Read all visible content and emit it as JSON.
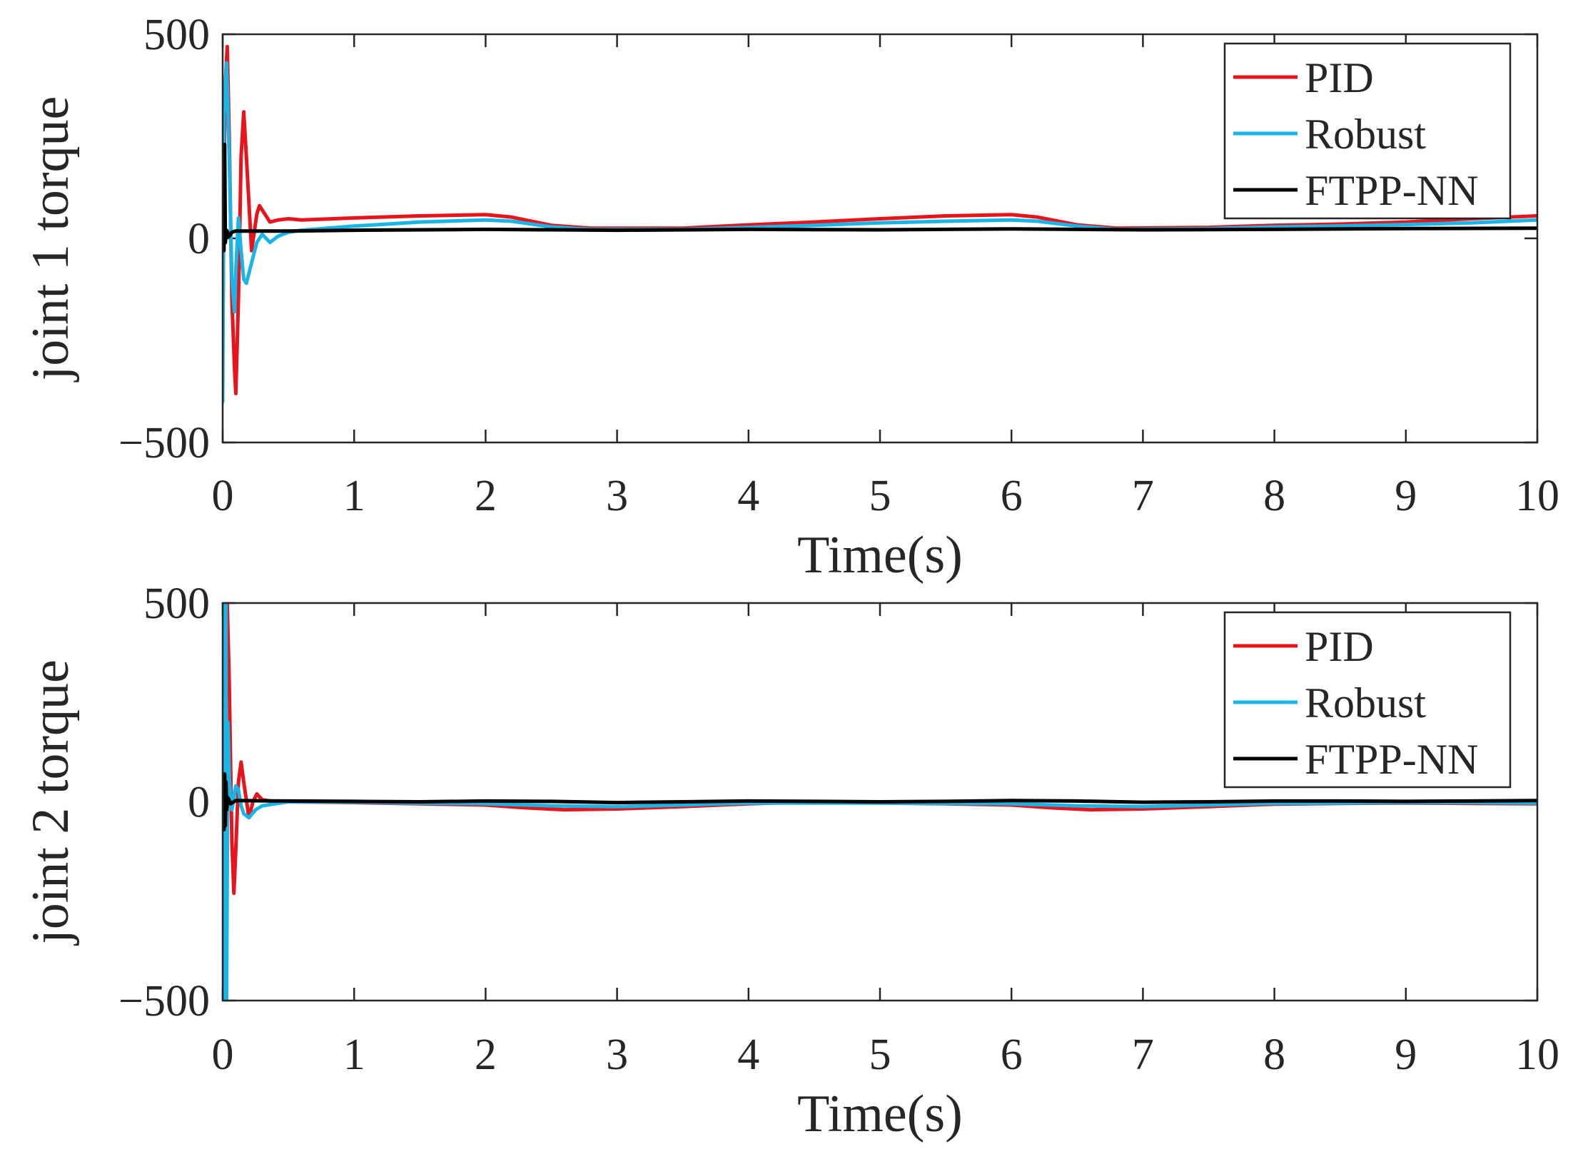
{
  "chart_data": [
    {
      "type": "line",
      "xlabel": "Time(s)",
      "ylabel": "joint 1 torque",
      "xlim": [
        0,
        10
      ],
      "ylim": [
        -500,
        500
      ],
      "xticks": [
        "0",
        "1",
        "2",
        "3",
        "4",
        "5",
        "6",
        "7",
        "8",
        "9",
        "10"
      ],
      "yticks": [
        "−500",
        "0",
        "500"
      ],
      "legend_position": "top-right",
      "series": [
        {
          "name": "PID",
          "color": "#e8141b",
          "points": [
            [
              0,
              -300
            ],
            [
              0.01,
              150
            ],
            [
              0.02,
              380
            ],
            [
              0.035,
              470
            ],
            [
              0.05,
              250
            ],
            [
              0.07,
              -150
            ],
            [
              0.09,
              -320
            ],
            [
              0.1,
              -380
            ],
            [
              0.12,
              -150
            ],
            [
              0.14,
              200
            ],
            [
              0.16,
              310
            ],
            [
              0.18,
              200
            ],
            [
              0.22,
              -30
            ],
            [
              0.26,
              60
            ],
            [
              0.28,
              80
            ],
            [
              0.32,
              60
            ],
            [
              0.36,
              40
            ],
            [
              0.42,
              45
            ],
            [
              0.5,
              48
            ],
            [
              0.6,
              45
            ],
            [
              1.0,
              50
            ],
            [
              1.5,
              55
            ],
            [
              2.0,
              58
            ],
            [
              2.2,
              52
            ],
            [
              2.5,
              32
            ],
            [
              2.8,
              25
            ],
            [
              3.5,
              25
            ],
            [
              4.0,
              33
            ],
            [
              4.5,
              40
            ],
            [
              5.0,
              48
            ],
            [
              5.5,
              55
            ],
            [
              6.0,
              58
            ],
            [
              6.2,
              52
            ],
            [
              6.5,
              33
            ],
            [
              6.8,
              25
            ],
            [
              7.5,
              27
            ],
            [
              8.0,
              32
            ],
            [
              8.5,
              35
            ],
            [
              9.0,
              40
            ],
            [
              9.5,
              48
            ],
            [
              10.0,
              55
            ]
          ]
        },
        {
          "name": "Robust",
          "color": "#19b5e6",
          "points": [
            [
              0,
              -400
            ],
            [
              0.01,
              300
            ],
            [
              0.03,
              430
            ],
            [
              0.05,
              200
            ],
            [
              0.07,
              -100
            ],
            [
              0.09,
              -180
            ],
            [
              0.1,
              -80
            ],
            [
              0.12,
              50
            ],
            [
              0.14,
              -30
            ],
            [
              0.16,
              -100
            ],
            [
              0.18,
              -110
            ],
            [
              0.22,
              -60
            ],
            [
              0.26,
              -10
            ],
            [
              0.3,
              10
            ],
            [
              0.36,
              -10
            ],
            [
              0.42,
              5
            ],
            [
              0.5,
              15
            ],
            [
              0.6,
              20
            ],
            [
              1.0,
              30
            ],
            [
              1.5,
              40
            ],
            [
              2.0,
              45
            ],
            [
              2.2,
              42
            ],
            [
              2.5,
              28
            ],
            [
              2.8,
              22
            ],
            [
              3.5,
              22
            ],
            [
              4.0,
              27
            ],
            [
              4.5,
              32
            ],
            [
              5.0,
              38
            ],
            [
              5.5,
              42
            ],
            [
              6.0,
              45
            ],
            [
              6.2,
              42
            ],
            [
              6.5,
              30
            ],
            [
              6.8,
              22
            ],
            [
              7.5,
              24
            ],
            [
              8.0,
              28
            ],
            [
              8.5,
              30
            ],
            [
              9.0,
              34
            ],
            [
              9.5,
              38
            ],
            [
              10.0,
              45
            ]
          ]
        },
        {
          "name": "FTPP-NN",
          "color": "#000000",
          "points": [
            [
              0,
              -20
            ],
            [
              0.005,
              200
            ],
            [
              0.01,
              -30
            ],
            [
              0.015,
              230
            ],
            [
              0.02,
              -10
            ],
            [
              0.03,
              20
            ],
            [
              0.05,
              5
            ],
            [
              0.07,
              15
            ],
            [
              0.1,
              18
            ],
            [
              0.5,
              18
            ],
            [
              1.0,
              20
            ],
            [
              2.0,
              22
            ],
            [
              3.0,
              20
            ],
            [
              4.0,
              22
            ],
            [
              5.0,
              21
            ],
            [
              6.0,
              23
            ],
            [
              7.0,
              21
            ],
            [
              8.0,
              22
            ],
            [
              9.0,
              24
            ],
            [
              10.0,
              25
            ]
          ]
        }
      ]
    },
    {
      "type": "line",
      "xlabel": "Time(s)",
      "ylabel": "joint 2 torque",
      "xlim": [
        0,
        10
      ],
      "ylim": [
        -500,
        500
      ],
      "xticks": [
        "0",
        "1",
        "2",
        "3",
        "4",
        "5",
        "6",
        "7",
        "8",
        "9",
        "10"
      ],
      "yticks": [
        "−500",
        "0",
        "500"
      ],
      "legend_position": "top-right",
      "series": [
        {
          "name": "PID",
          "color": "#e8141b",
          "points": [
            [
              0,
              -300
            ],
            [
              0.02,
              300
            ],
            [
              0.035,
              500
            ],
            [
              0.05,
              300
            ],
            [
              0.07,
              -100
            ],
            [
              0.085,
              -230
            ],
            [
              0.1,
              -120
            ],
            [
              0.12,
              50
            ],
            [
              0.14,
              100
            ],
            [
              0.16,
              50
            ],
            [
              0.2,
              -40
            ],
            [
              0.23,
              0
            ],
            [
              0.26,
              20
            ],
            [
              0.3,
              5
            ],
            [
              0.4,
              0
            ],
            [
              0.5,
              0
            ],
            [
              1.0,
              -2
            ],
            [
              1.5,
              -5
            ],
            [
              2.0,
              -8
            ],
            [
              2.3,
              -15
            ],
            [
              2.6,
              -20
            ],
            [
              3.0,
              -18
            ],
            [
              3.5,
              -12
            ],
            [
              4.0,
              -5
            ],
            [
              4.3,
              -2
            ],
            [
              5.0,
              -3
            ],
            [
              5.5,
              -5
            ],
            [
              6.0,
              -8
            ],
            [
              6.3,
              -15
            ],
            [
              6.6,
              -20
            ],
            [
              7.0,
              -18
            ],
            [
              7.5,
              -12
            ],
            [
              8.0,
              -6
            ],
            [
              8.5,
              -4
            ],
            [
              9.0,
              -3
            ],
            [
              9.5,
              -4
            ],
            [
              10.0,
              -5
            ]
          ]
        },
        {
          "name": "Robust",
          "color": "#19b5e6",
          "points": [
            [
              0,
              -500
            ],
            [
              0.005,
              500
            ],
            [
              0.01,
              -500
            ],
            [
              0.015,
              500
            ],
            [
              0.02,
              -500
            ],
            [
              0.025,
              500
            ],
            [
              0.03,
              -500
            ],
            [
              0.04,
              200
            ],
            [
              0.05,
              60
            ],
            [
              0.07,
              -20
            ],
            [
              0.1,
              40
            ],
            [
              0.12,
              30
            ],
            [
              0.14,
              -10
            ],
            [
              0.16,
              -30
            ],
            [
              0.2,
              -40
            ],
            [
              0.25,
              -20
            ],
            [
              0.3,
              -10
            ],
            [
              0.4,
              -5
            ],
            [
              0.5,
              0
            ],
            [
              1.0,
              -1
            ],
            [
              1.5,
              -3
            ],
            [
              2.0,
              -5
            ],
            [
              2.5,
              -10
            ],
            [
              3.0,
              -12
            ],
            [
              3.5,
              -8
            ],
            [
              4.0,
              -3
            ],
            [
              4.5,
              -3
            ],
            [
              5.0,
              -3
            ],
            [
              5.5,
              -4
            ],
            [
              6.0,
              -5
            ],
            [
              6.5,
              -10
            ],
            [
              7.0,
              -12
            ],
            [
              7.5,
              -8
            ],
            [
              8.0,
              -4
            ],
            [
              8.5,
              -3
            ],
            [
              9.0,
              -2
            ],
            [
              9.5,
              -2
            ],
            [
              10.0,
              -3
            ]
          ]
        },
        {
          "name": "FTPP-NN",
          "color": "#000000",
          "points": [
            [
              0,
              -50
            ],
            [
              0.005,
              60
            ],
            [
              0.01,
              -70
            ],
            [
              0.015,
              70
            ],
            [
              0.02,
              -60
            ],
            [
              0.025,
              50
            ],
            [
              0.03,
              -20
            ],
            [
              0.04,
              10
            ],
            [
              0.06,
              -5
            ],
            [
              0.1,
              3
            ],
            [
              0.5,
              2
            ],
            [
              1.0,
              1
            ],
            [
              1.5,
              0
            ],
            [
              2.0,
              2
            ],
            [
              2.5,
              1
            ],
            [
              3.0,
              -2
            ],
            [
              3.5,
              0
            ],
            [
              4.0,
              2
            ],
            [
              4.5,
              1
            ],
            [
              5.0,
              0
            ],
            [
              5.5,
              1
            ],
            [
              6.0,
              3
            ],
            [
              6.5,
              2
            ],
            [
              7.0,
              -1
            ],
            [
              7.5,
              0
            ],
            [
              8.0,
              2
            ],
            [
              8.5,
              2
            ],
            [
              9.0,
              1
            ],
            [
              9.5,
              2
            ],
            [
              10.0,
              3
            ]
          ]
        }
      ]
    }
  ]
}
